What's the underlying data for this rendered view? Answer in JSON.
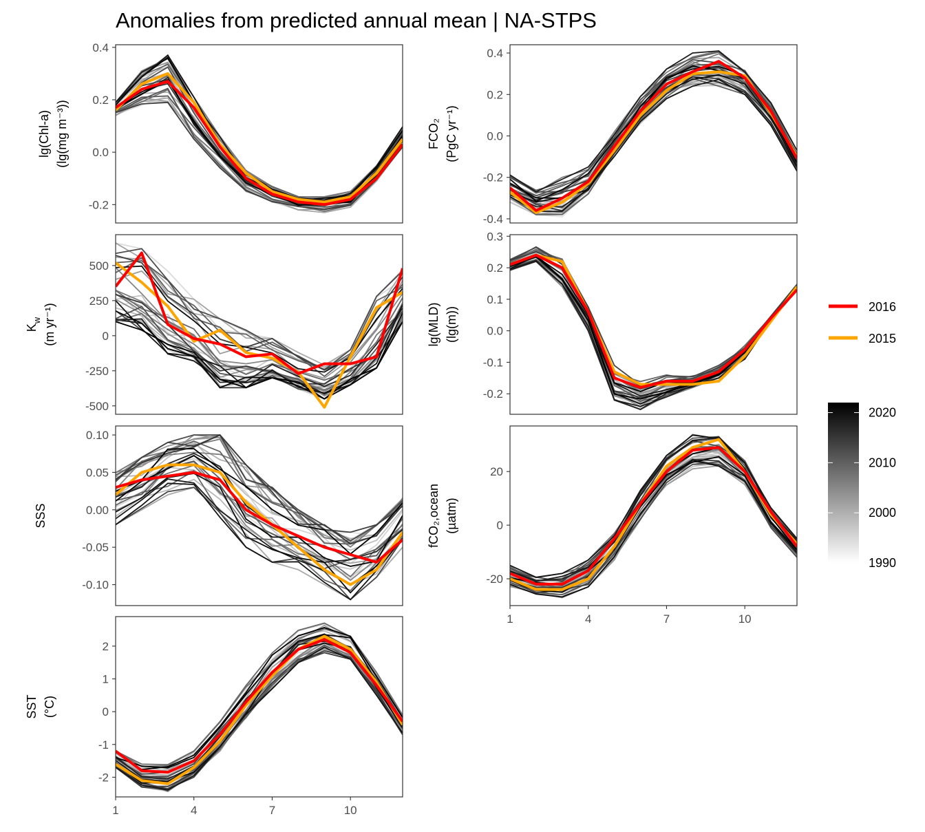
{
  "title": "Anomalies from predicted annual mean | NA-STPS",
  "colors": {
    "highlight_2016": "#ff0000",
    "highlight_2015": "#ffa500",
    "background_years": "grayscale white→black by year"
  },
  "legend": {
    "items": [
      {
        "label": "2016",
        "color": "#ff0000"
      },
      {
        "label": "2015",
        "color": "#ffa500"
      }
    ],
    "colorbar": {
      "labels": [
        "2020",
        "2010",
        "2000",
        "1990"
      ],
      "range": [
        1990,
        2022
      ]
    }
  },
  "chart_data": [
    {
      "type": "line",
      "ylabel_lines": [
        "lg(Chl-a)",
        "(lg(mg m⁻³))"
      ],
      "months": [
        1,
        2,
        3,
        4,
        5,
        6,
        7,
        8,
        9,
        10,
        11,
        12
      ],
      "yticks": [
        0.4,
        0.2,
        0.0,
        -0.2
      ],
      "ytick_labels": [
        "0.4",
        "0.2",
        "0.0",
        "-0.2"
      ],
      "ylim": [
        -0.27,
        0.41
      ],
      "envelope": {
        "lower": [
          0.14,
          0.18,
          0.19,
          0.05,
          -0.06,
          -0.15,
          -0.19,
          -0.22,
          -0.23,
          -0.21,
          -0.11,
          0.02
        ],
        "upper": [
          0.19,
          0.31,
          0.37,
          0.21,
          0.06,
          -0.07,
          -0.13,
          -0.17,
          -0.17,
          -0.15,
          -0.05,
          0.1
        ]
      },
      "series": [
        {
          "name": "2016",
          "values": [
            0.17,
            0.24,
            0.27,
            0.17,
            0.02,
            -0.1,
            -0.16,
            -0.19,
            -0.2,
            -0.18,
            -0.1,
            0.03
          ]
        },
        {
          "name": "2015",
          "values": [
            0.16,
            0.26,
            0.3,
            0.19,
            0.03,
            -0.08,
            -0.15,
            -0.18,
            -0.19,
            -0.17,
            -0.08,
            0.05
          ]
        }
      ]
    },
    {
      "type": "line",
      "ylabel_lines": [
        "FCO₂",
        "(PgC yr⁻¹)"
      ],
      "months": [
        1,
        2,
        3,
        4,
        5,
        6,
        7,
        8,
        9,
        10,
        11,
        12
      ],
      "yticks": [
        0.4,
        0.2,
        0.0,
        -0.2,
        -0.4
      ],
      "ytick_labels": [
        "0.4",
        "0.2",
        "0.0",
        "-0.2",
        "-0.4"
      ],
      "ylim": [
        -0.42,
        0.44
      ],
      "envelope": {
        "lower": [
          -0.32,
          -0.38,
          -0.39,
          -0.28,
          -0.1,
          0.06,
          0.18,
          0.24,
          0.24,
          0.2,
          0.05,
          -0.17
        ],
        "upper": [
          -0.18,
          -0.25,
          -0.2,
          -0.15,
          0.02,
          0.19,
          0.33,
          0.4,
          0.41,
          0.33,
          0.16,
          -0.07
        ]
      },
      "series": [
        {
          "name": "2016",
          "values": [
            -0.25,
            -0.36,
            -0.3,
            -0.22,
            -0.05,
            0.12,
            0.25,
            0.31,
            0.36,
            0.28,
            0.12,
            -0.11
          ]
        },
        {
          "name": "2015",
          "values": [
            -0.27,
            -0.37,
            -0.32,
            -0.23,
            -0.07,
            0.1,
            0.22,
            0.3,
            0.31,
            0.29,
            0.11,
            -0.1
          ]
        }
      ]
    },
    {
      "type": "line",
      "ylabel_lines": [
        "K_w",
        "(m yr⁻¹)"
      ],
      "months": [
        1,
        2,
        3,
        4,
        5,
        6,
        7,
        8,
        9,
        10,
        11,
        12
      ],
      "yticks": [
        500,
        250,
        0,
        -250,
        -500
      ],
      "ytick_labels": [
        "500",
        "250",
        "0",
        "-250",
        "-500"
      ],
      "ylim": [
        -560,
        720
      ],
      "envelope": {
        "lower": [
          100,
          40,
          -130,
          -180,
          -370,
          -370,
          -300,
          -380,
          -450,
          -350,
          -230,
          100
        ],
        "upper": [
          660,
          620,
          460,
          260,
          120,
          40,
          -20,
          -120,
          -200,
          -100,
          280,
          480
        ]
      },
      "series": [
        {
          "name": "2016",
          "values": [
            350,
            590,
            80,
            -20,
            -60,
            -150,
            -130,
            -270,
            -200,
            -200,
            -150,
            480
          ]
        },
        {
          "name": "2015",
          "values": [
            520,
            380,
            210,
            -40,
            40,
            -120,
            -160,
            -260,
            -510,
            -150,
            200,
            310
          ]
        }
      ]
    },
    {
      "type": "line",
      "ylabel_lines": [
        "lg(MLD)",
        "(lg(m))"
      ],
      "months": [
        1,
        2,
        3,
        4,
        5,
        6,
        7,
        8,
        9,
        10,
        11,
        12
      ],
      "yticks": [
        0.3,
        0.2,
        0.1,
        0.0,
        -0.1,
        -0.2
      ],
      "ytick_labels": [
        "0.3",
        "0.2",
        "0.1",
        "0.0",
        "-0.1",
        "-0.2"
      ],
      "ylim": [
        -0.265,
        0.305
      ],
      "envelope": {
        "lower": [
          0.19,
          0.22,
          0.14,
          0.0,
          -0.22,
          -0.25,
          -0.21,
          -0.18,
          -0.15,
          -0.09,
          0.03,
          0.13
        ],
        "upper": [
          0.23,
          0.27,
          0.24,
          0.09,
          -0.11,
          -0.15,
          -0.13,
          -0.14,
          -0.11,
          -0.04,
          0.05,
          0.15
        ]
      },
      "series": [
        {
          "name": "2016",
          "values": [
            0.21,
            0.24,
            0.2,
            0.06,
            -0.15,
            -0.18,
            -0.16,
            -0.16,
            -0.13,
            -0.06,
            0.04,
            0.13
          ]
        },
        {
          "name": "2015",
          "values": [
            0.21,
            0.24,
            0.22,
            0.06,
            -0.13,
            -0.17,
            -0.17,
            -0.17,
            -0.16,
            -0.08,
            0.03,
            0.14
          ]
        }
      ]
    },
    {
      "type": "line",
      "ylabel_lines": [
        "SSS"
      ],
      "months": [
        1,
        2,
        3,
        4,
        5,
        6,
        7,
        8,
        9,
        10,
        11,
        12
      ],
      "yticks": [
        0.1,
        0.05,
        0.0,
        -0.05,
        -0.1
      ],
      "ytick_labels": [
        "0.10",
        "0.05",
        "0.00",
        "-0.05",
        "-0.10"
      ],
      "ylim": [
        -0.128,
        0.112
      ],
      "envelope": {
        "lower": [
          -0.02,
          0.0,
          0.02,
          0.03,
          -0.01,
          -0.05,
          -0.07,
          -0.08,
          -0.1,
          -0.12,
          -0.09,
          -0.05
        ],
        "upper": [
          0.05,
          0.07,
          0.09,
          0.1,
          0.1,
          0.06,
          0.03,
          0.0,
          -0.02,
          -0.03,
          -0.02,
          0.02
        ]
      },
      "series": [
        {
          "name": "2016",
          "values": [
            0.03,
            0.04,
            0.045,
            0.05,
            0.04,
            0.0,
            -0.02,
            -0.035,
            -0.05,
            -0.06,
            -0.07,
            -0.04
          ]
        },
        {
          "name": "2015",
          "values": [
            0.02,
            0.05,
            0.06,
            0.06,
            0.05,
            0.01,
            -0.02,
            -0.05,
            -0.08,
            -0.1,
            -0.08,
            -0.03
          ]
        }
      ]
    },
    {
      "type": "line",
      "ylabel_lines": [
        "fCO₂,ocean",
        "(µatm)"
      ],
      "months": [
        1,
        2,
        3,
        4,
        5,
        6,
        7,
        8,
        9,
        10,
        11,
        12
      ],
      "yticks": [
        20,
        0,
        -20
      ],
      "ytick_labels": [
        "20",
        "0",
        "-20"
      ],
      "ylim": [
        -30,
        37
      ],
      "x_axis_labels": [
        "1",
        "4",
        "7",
        "10"
      ],
      "envelope": {
        "lower": [
          -23,
          -26,
          -27,
          -23,
          -13,
          2,
          15,
          21,
          22,
          15,
          -1,
          -12
        ],
        "upper": [
          -15,
          -19,
          -18,
          -13,
          -3,
          13,
          26,
          34,
          33,
          24,
          7,
          -5
        ]
      },
      "series": [
        {
          "name": "2016",
          "values": [
            -18,
            -22,
            -22,
            -17,
            -5,
            8,
            20,
            28,
            29,
            20,
            5,
            -8
          ]
        },
        {
          "name": "2015",
          "values": [
            -20,
            -24,
            -24,
            -20,
            -8,
            8,
            22,
            29,
            32,
            20,
            4,
            -7
          ]
        }
      ]
    },
    {
      "type": "line",
      "ylabel_lines": [
        "SST",
        "(°C)"
      ],
      "months": [
        1,
        2,
        3,
        4,
        5,
        6,
        7,
        8,
        9,
        10,
        11,
        12
      ],
      "yticks": [
        2,
        1,
        0,
        -1,
        -2
      ],
      "ytick_labels": [
        "2",
        "1",
        "0",
        "-1",
        "-2"
      ],
      "ylim": [
        -2.6,
        2.9
      ],
      "x_axis_labels": [
        "1",
        "4",
        "7",
        "10"
      ],
      "envelope": {
        "lower": [
          -1.7,
          -2.3,
          -2.45,
          -2.0,
          -1.2,
          -0.2,
          0.7,
          1.5,
          1.8,
          1.6,
          0.5,
          -0.7
        ],
        "upper": [
          -1.2,
          -1.6,
          -1.6,
          -1.2,
          -0.3,
          0.8,
          1.8,
          2.5,
          2.7,
          2.3,
          1.2,
          -0.1
        ]
      },
      "series": [
        {
          "name": "2016",
          "values": [
            -1.2,
            -1.8,
            -1.85,
            -1.5,
            -0.7,
            0.3,
            1.2,
            1.9,
            2.2,
            1.8,
            0.8,
            -0.3
          ]
        },
        {
          "name": "2015",
          "values": [
            -1.6,
            -2.1,
            -2.2,
            -1.7,
            -0.9,
            0.2,
            1.1,
            1.9,
            2.3,
            1.9,
            0.9,
            -0.4
          ]
        }
      ]
    }
  ]
}
